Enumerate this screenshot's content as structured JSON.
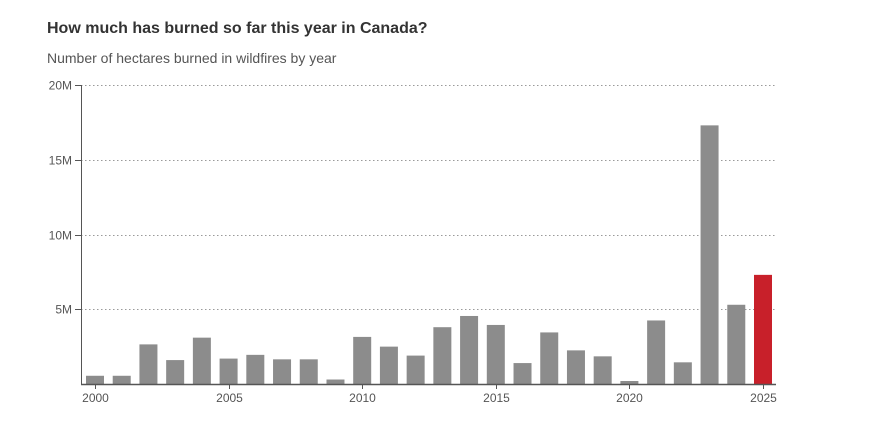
{
  "chart_data": {
    "type": "bar",
    "title": "How much has burned so far this year in Canada?",
    "subtitle": "Number of hectares burned in wildfires by year",
    "xlabel": "",
    "ylabel": "",
    "categories": [
      2000,
      2001,
      2002,
      2003,
      2004,
      2005,
      2006,
      2007,
      2008,
      2009,
      2010,
      2011,
      2012,
      2013,
      2014,
      2015,
      2016,
      2017,
      2018,
      2019,
      2020,
      2021,
      2022,
      2023,
      2024,
      2025
    ],
    "values": [
      550000,
      550000,
      2650000,
      1600000,
      3100000,
      1700000,
      1950000,
      1650000,
      1650000,
      300000,
      3150000,
      2500000,
      1900000,
      3800000,
      4550000,
      3950000,
      1400000,
      3450000,
      2250000,
      1850000,
      200000,
      4250000,
      1450000,
      17300000,
      5300000,
      7300000
    ],
    "ylim": [
      0,
      20000000
    ],
    "yticks": [
      5000000,
      10000000,
      15000000,
      20000000
    ],
    "ytick_labels": [
      "5M",
      "10M",
      "15M",
      "20M"
    ],
    "xticks": [
      2000,
      2005,
      2010,
      2015,
      2020,
      2025
    ],
    "xtick_labels": [
      "2000",
      "2005",
      "2010",
      "2015",
      "2020",
      "2025"
    ],
    "grid": true,
    "legend": "none",
    "bar_color": "#8c8c8c",
    "highlight_category": 2025,
    "highlight_color": "#c8202a"
  }
}
